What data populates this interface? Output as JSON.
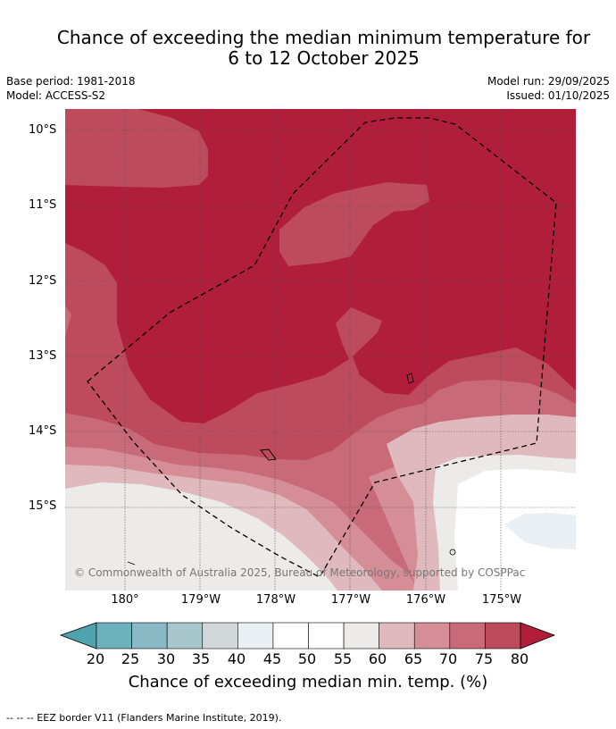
{
  "title_line1": "Chance of exceeding the median minimum temperature for",
  "title_line2": "6 to 12 October 2025",
  "base_period": "Base period: 1981-2018",
  "model": "Model: ACCESS-S2",
  "model_run": "Model run: 29/09/2025",
  "issued": "Issued: 01/10/2025",
  "latitudes": [
    "10°S",
    "11°S",
    "12°S",
    "13°S",
    "14°S",
    "15°S"
  ],
  "longitudes": [
    "180°",
    "179°W",
    "178°W",
    "177°W",
    "176°W",
    "175°W"
  ],
  "copyright": "© Commonwealth of Australia 2025, Bureau of Meteorology, supported by COSPPac",
  "colorbar": {
    "ticks": [
      "20",
      "25",
      "30",
      "35",
      "40",
      "45",
      "50",
      "55",
      "60",
      "65",
      "70",
      "75",
      "80"
    ],
    "title": "Chance of exceeding median min. temp. (%)",
    "colors": [
      "#4fa3ad",
      "#6cb0bc",
      "#8ab9c6",
      "#a8c7cd",
      "#d2d8da",
      "#e9eff2",
      "#ffffff",
      "#ffffff",
      "#ecebea",
      "#e0b9be",
      "#d58d96",
      "#c96a78",
      "#bd4b5c",
      "#b01e3a"
    ]
  },
  "footnote": "--  --  -- EEZ border V11 (Flanders Marine Institute, 2019)."
}
